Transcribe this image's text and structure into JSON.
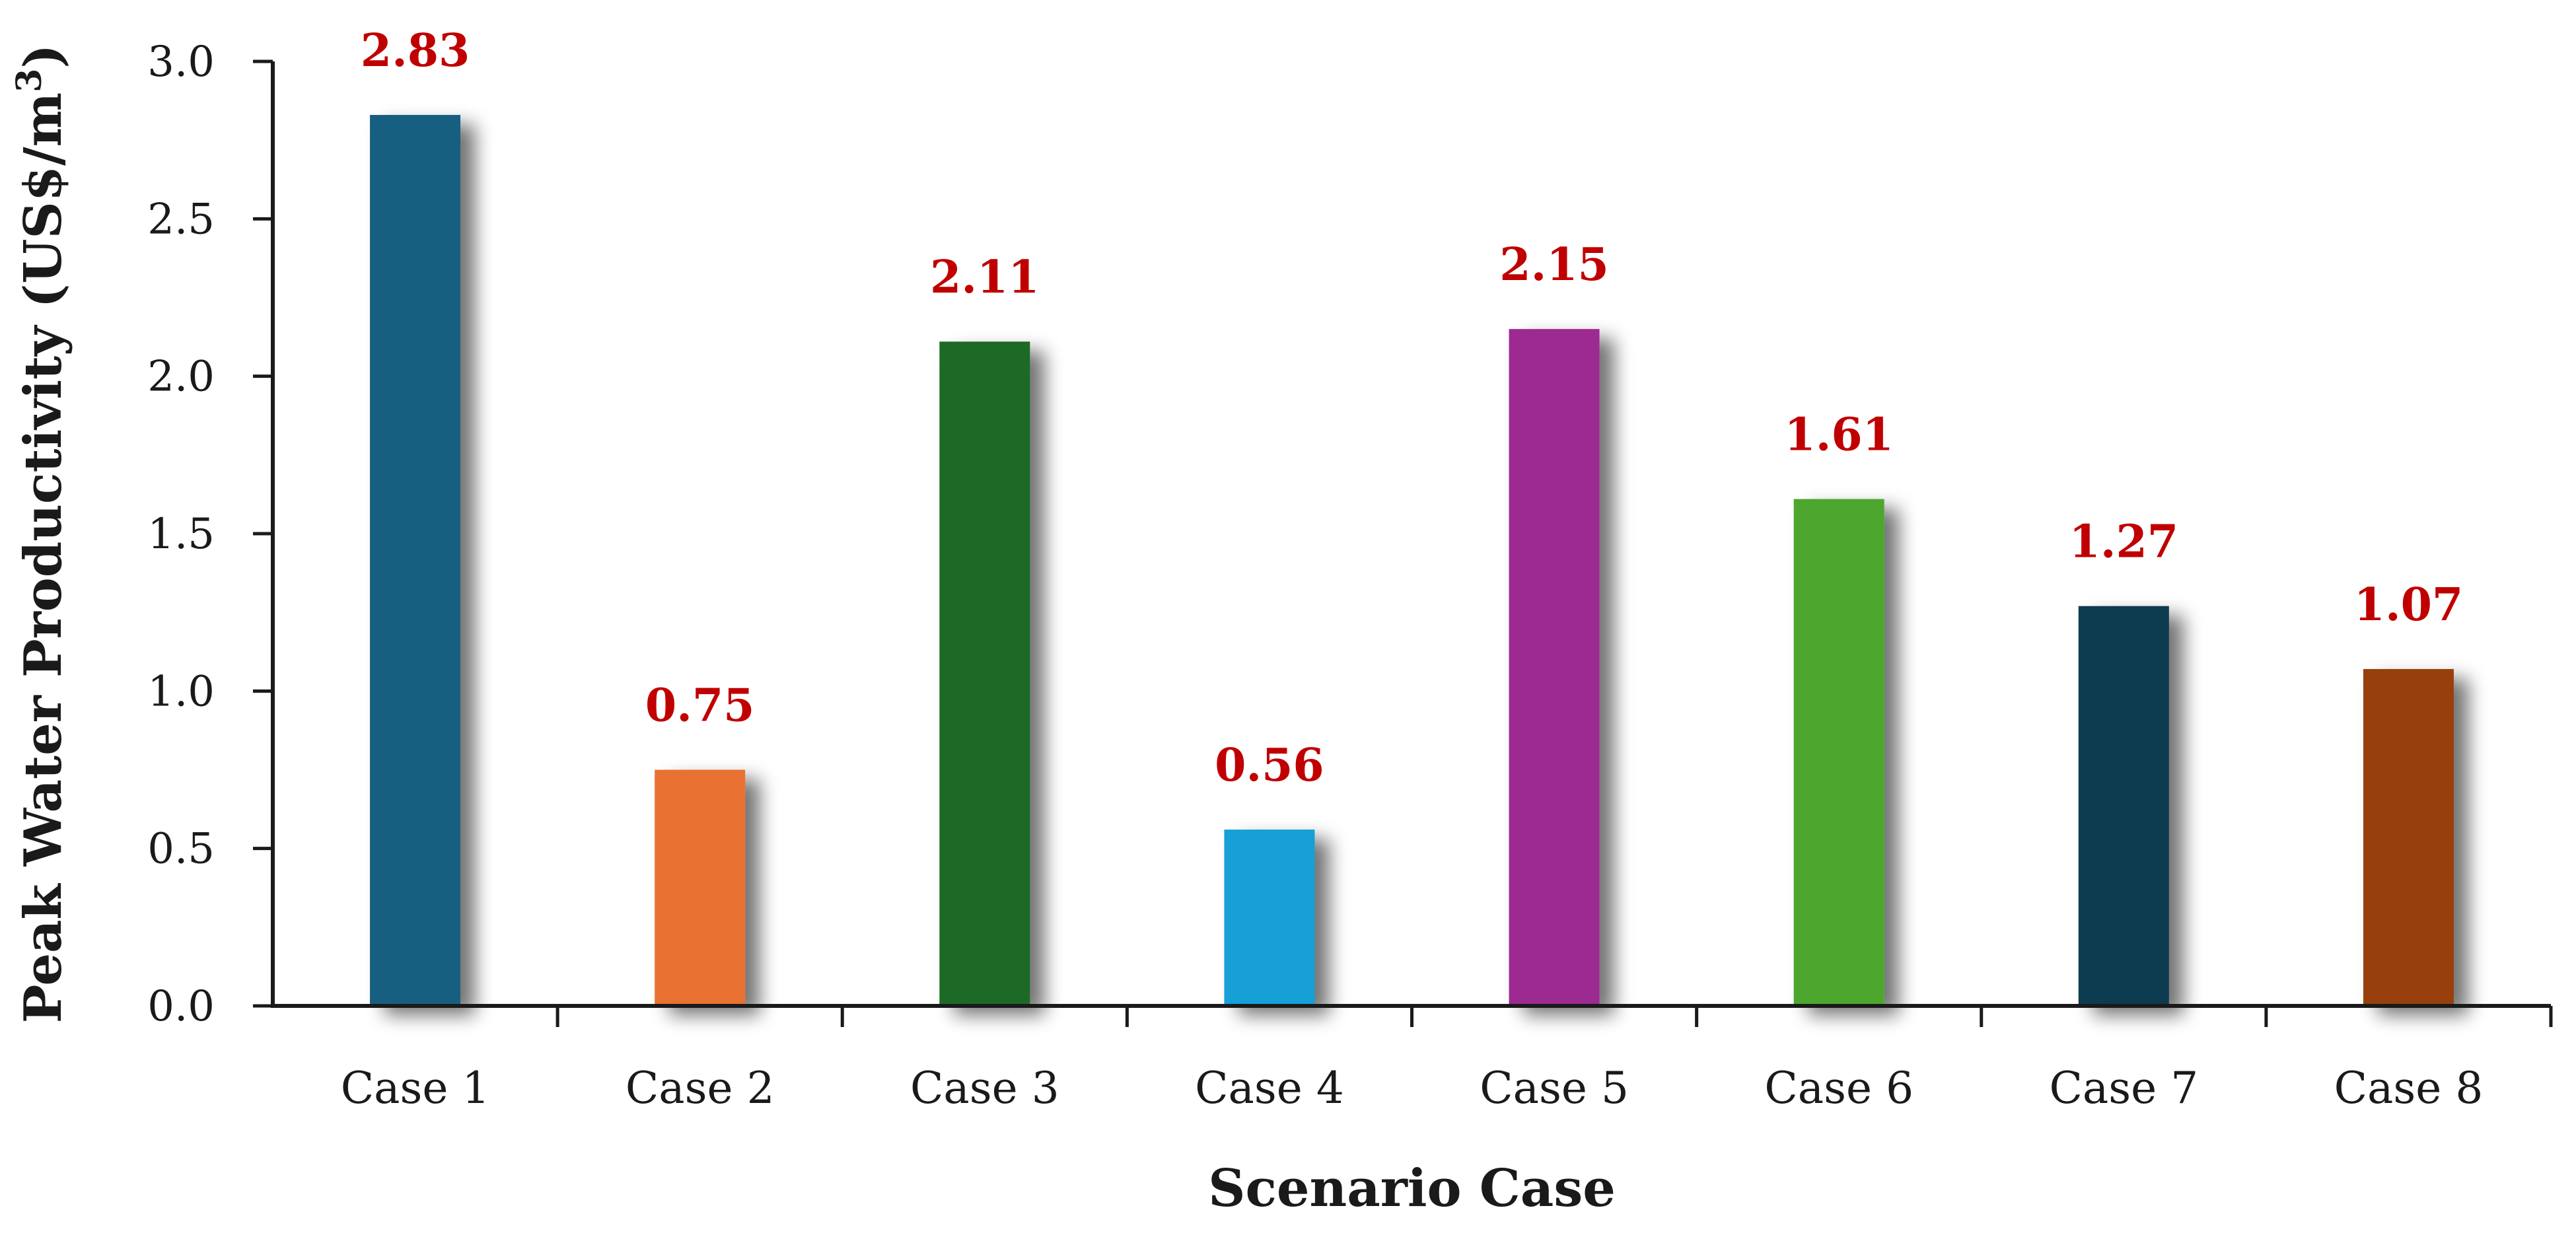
{
  "chart_data": {
    "type": "bar",
    "categories": [
      "Case 1",
      "Case 2",
      "Case 3",
      "Case 4",
      "Case 5",
      "Case 6",
      "Case 7",
      "Case 8"
    ],
    "values": [
      2.83,
      0.75,
      2.11,
      0.56,
      2.15,
      1.61,
      1.27,
      1.07
    ],
    "data_labels": [
      "2.83",
      "0.75",
      "2.11",
      "0.56",
      "2.15",
      "1.61",
      "1.27",
      "1.07"
    ],
    "colors": [
      "#175e80",
      "#e97132",
      "#1b6b27",
      "#12a0d7",
      "#9c2b91",
      "#4ea72e",
      "#0e3a4f",
      "#973f11"
    ],
    "data_label_color": "#c00000",
    "title": "",
    "xlabel": "Scenario Case",
    "ylabel_main": "Peak Water Productivity (US$/m",
    "ylabel_sup": "3",
    "ylabel_close": ")",
    "ylim": [
      0,
      3.0
    ],
    "yticks": [
      0.0,
      0.5,
      1.0,
      1.5,
      2.0,
      2.5,
      3.0
    ],
    "ytick_labels": [
      "0.0",
      "0.5",
      "1.0",
      "1.5",
      "2.0",
      "2.5",
      "3.0"
    ],
    "grid": false,
    "legend": "none"
  }
}
